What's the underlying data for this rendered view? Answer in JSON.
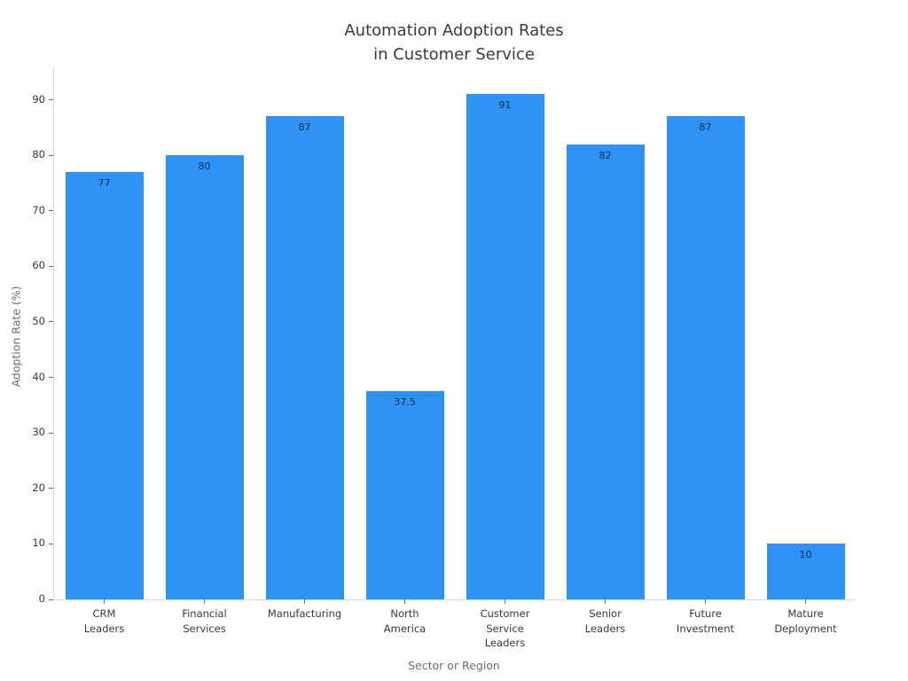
{
  "chart_data": {
    "type": "bar",
    "title": "Automation Adoption Rates\nin Customer Service",
    "xlabel": "Sector or Region",
    "ylabel": "Adoption Rate (%)",
    "categories": [
      "CRM\nLeaders",
      "Financial\nServices",
      "Manufacturing",
      "North\nAmerica",
      "Customer\nService\nLeaders",
      "Senior\nLeaders",
      "Future\nInvestment",
      "Mature\nDeployment"
    ],
    "values": [
      77,
      80,
      87,
      37.5,
      91,
      82,
      87,
      10
    ],
    "value_labels": [
      "77",
      "80",
      "87",
      "37.5",
      "91",
      "82",
      "87",
      "10"
    ],
    "yticks": [
      0,
      10,
      20,
      30,
      40,
      50,
      60,
      70,
      80,
      90
    ],
    "ylim": [
      0,
      96
    ],
    "grid": false,
    "legend": "none",
    "bar_color": "#2e93f5"
  },
  "colors": {
    "bar": "#2e93f5",
    "title_text": "#3b3b3b",
    "tick_text": "#3a3a3a",
    "axis_title_text": "#6e6e6e",
    "spine": "#d9d9d9",
    "tick_mark": "#707070",
    "value_label_text": "rgba(0,0,0,0.68)",
    "background": "#ffffff"
  }
}
